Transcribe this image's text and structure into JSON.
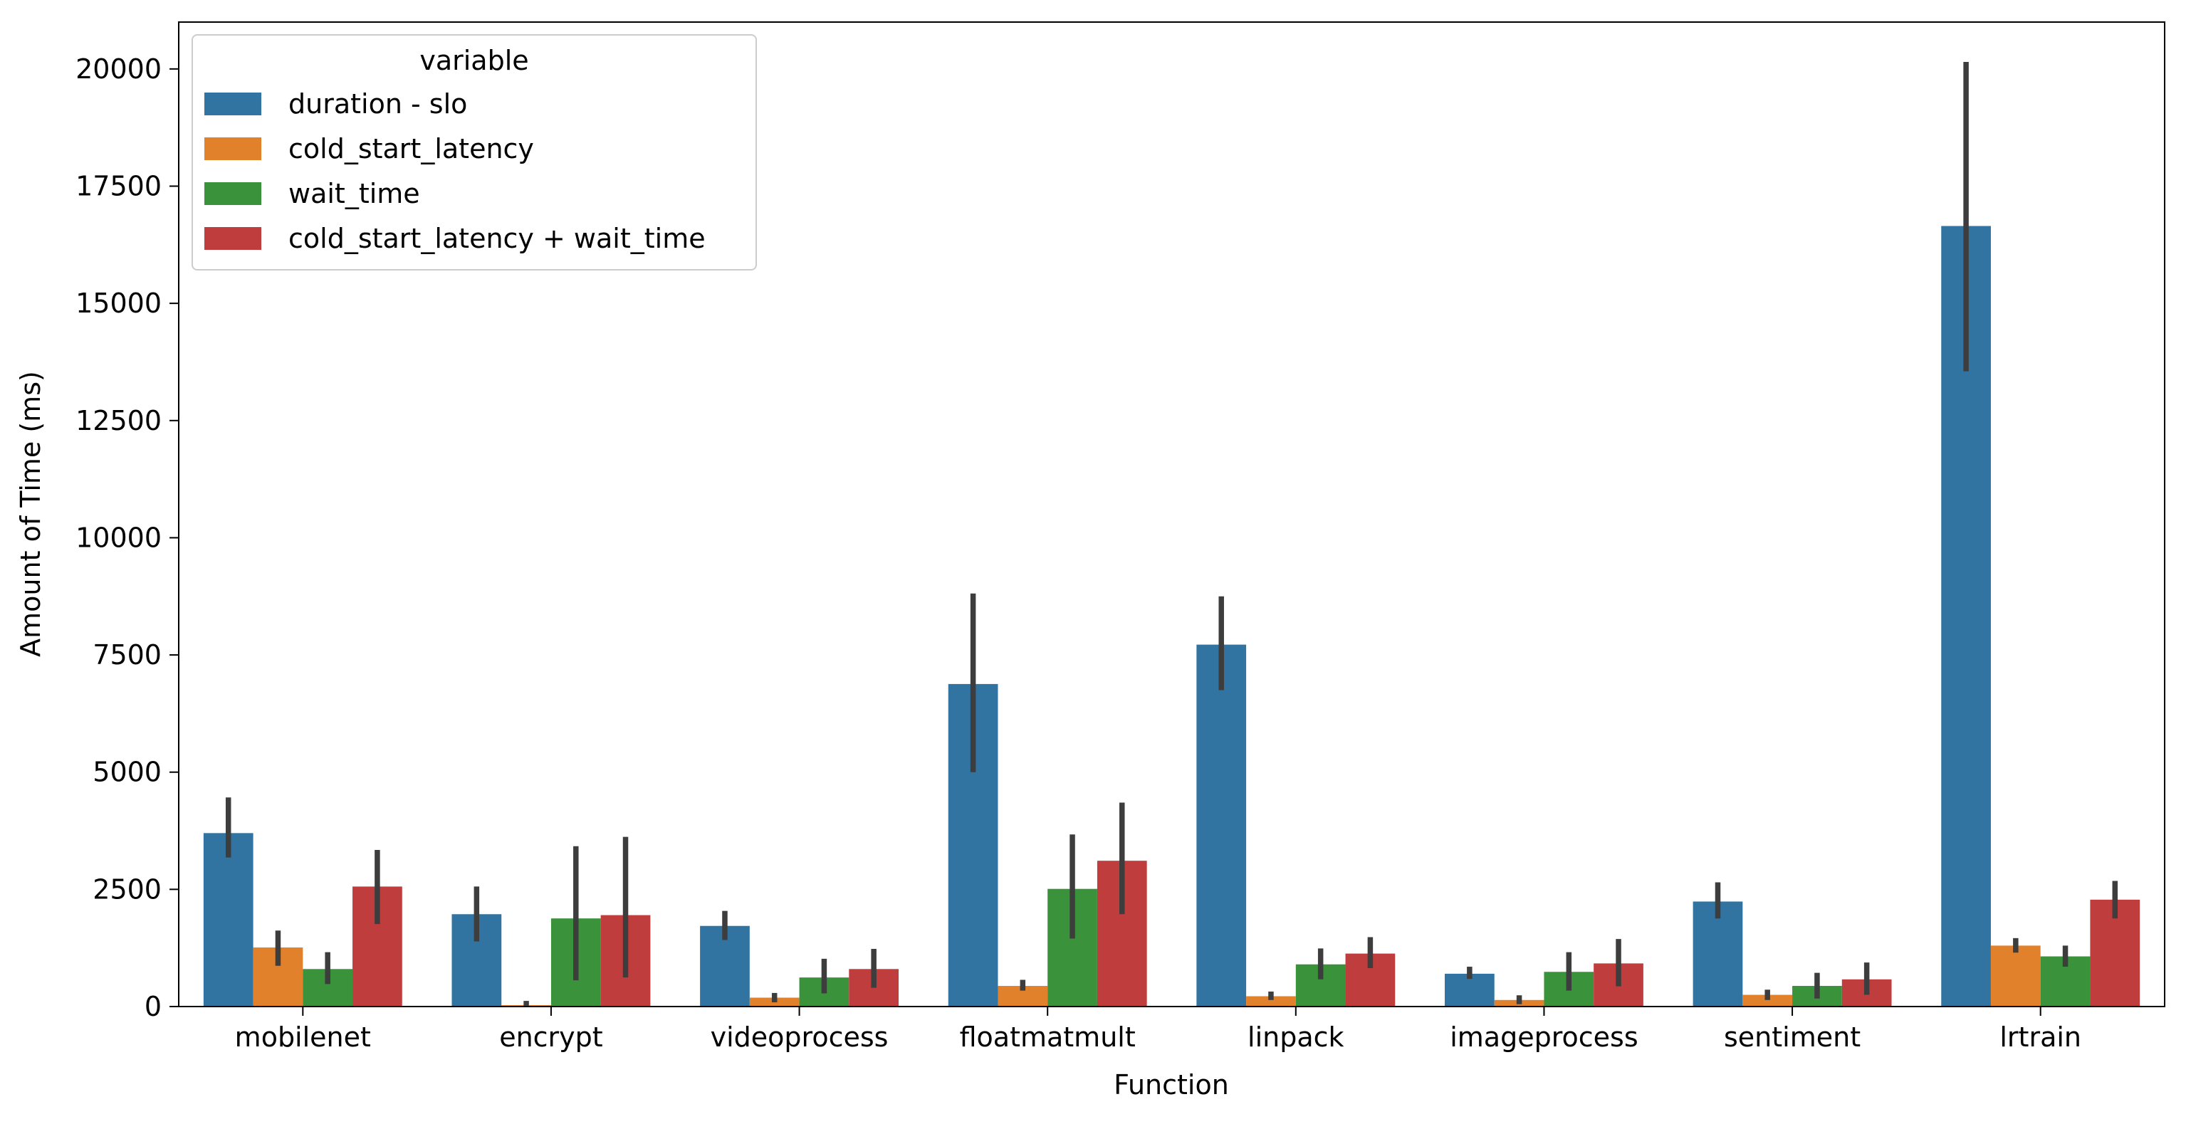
{
  "chart_data": {
    "type": "bar",
    "title": "",
    "xlabel": "Function",
    "ylabel": "Amount of Time (ms)",
    "ylim": [
      0,
      21000
    ],
    "yticks": [
      0,
      2500,
      5000,
      7500,
      10000,
      12500,
      15000,
      17500,
      20000
    ],
    "grid": false,
    "legend": {
      "title": "variable",
      "placement": "top-left"
    },
    "categories": [
      "mobilenet",
      "encrypt",
      "videoprocess",
      "floatmatmult",
      "linpack",
      "imageprocess",
      "sentiment",
      "lrtrain"
    ],
    "series": [
      {
        "name": "duration - slo",
        "color": "#3274a1",
        "values": [
          3700,
          1970,
          1720,
          6880,
          7720,
          700,
          2240,
          16650
        ],
        "error_low": [
          3180,
          1390,
          1420,
          5000,
          6750,
          590,
          1880,
          13550
        ],
        "error_high": [
          4460,
          2560,
          2040,
          8810,
          8750,
          850,
          2650,
          20150
        ]
      },
      {
        "name": "cold_start_latency",
        "color": "#e1812c",
        "values": [
          1260,
          30,
          190,
          440,
          220,
          140,
          250,
          1300
        ],
        "error_low": [
          870,
          0,
          90,
          340,
          140,
          50,
          140,
          1150
        ],
        "error_high": [
          1620,
          120,
          290,
          570,
          320,
          240,
          360,
          1460
        ]
      },
      {
        "name": "wait_time",
        "color": "#3a923a",
        "values": [
          800,
          1880,
          620,
          2510,
          900,
          740,
          440,
          1070
        ],
        "error_low": [
          480,
          560,
          280,
          1450,
          580,
          340,
          170,
          850
        ],
        "error_high": [
          1160,
          3420,
          1020,
          3670,
          1240,
          1160,
          720,
          1300
        ]
      },
      {
        "name": "cold_start_latency + wait_time",
        "color": "#c03d3e",
        "values": [
          2560,
          1950,
          800,
          3110,
          1130,
          920,
          580,
          2280
        ],
        "error_low": [
          1760,
          620,
          400,
          1970,
          820,
          430,
          250,
          1880
        ],
        "error_high": [
          3340,
          3620,
          1230,
          4350,
          1480,
          1440,
          940,
          2680
        ]
      }
    ]
  }
}
